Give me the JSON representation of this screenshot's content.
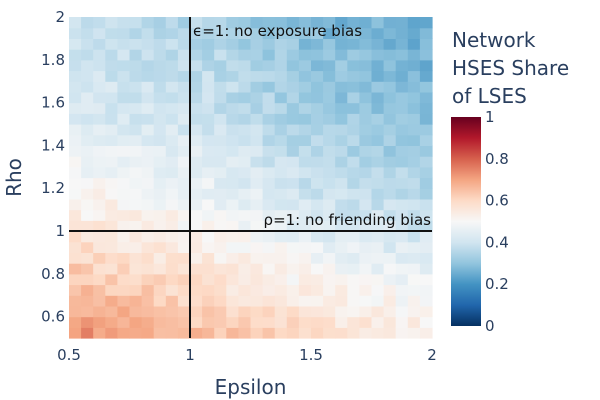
{
  "chart_data": {
    "type": "heatmap",
    "xlabel": "Epsilon",
    "ylabel": "Rho",
    "xlim": [
      0.5,
      2.0
    ],
    "ylim": [
      0.5,
      2.0
    ],
    "x_ticks": [
      "0.5",
      "1",
      "1.5",
      "2"
    ],
    "x_tick_values": [
      0.5,
      1.0,
      1.5,
      2.0
    ],
    "y_ticks": [
      "0.6",
      "0.8",
      "1",
      "1.2",
      "1.4",
      "1.6",
      "1.8",
      "2"
    ],
    "y_tick_values": [
      0.6,
      0.8,
      1.0,
      1.2,
      1.4,
      1.6,
      1.8,
      2.0
    ],
    "colorbar": {
      "title_lines": [
        "Network",
        "HSES Share",
        "of LSES"
      ],
      "range": [
        0,
        1
      ],
      "ticks": [
        "0",
        "0.2",
        "0.4",
        "0.6",
        "0.8",
        "1"
      ],
      "tick_values": [
        0,
        0.2,
        0.4,
        0.6,
        0.8,
        1.0
      ],
      "colorscale": [
        "#053061",
        "#2166ac",
        "#4393c3",
        "#92c5de",
        "#d1e5f0",
        "#f7f7f7",
        "#fddbc7",
        "#f4a582",
        "#d6604d",
        "#b2182b",
        "#67001f"
      ]
    },
    "grid": {
      "nx": 30,
      "ny": 30
    },
    "surface_anchors": {
      "eps": [
        0.5,
        1.0,
        1.5,
        2.0
      ],
      "rho": [
        0.5,
        1.0,
        1.5,
        2.0
      ],
      "values": [
        [
          0.75,
          0.56,
          0.43,
          0.37
        ],
        [
          0.66,
          0.52,
          0.41,
          0.35
        ],
        [
          0.6,
          0.44,
          0.33,
          0.28
        ],
        [
          0.54,
          0.4,
          0.29,
          0.24
        ]
      ]
    },
    "reference_lines": [
      {
        "axis": "x",
        "value": 1.0,
        "label": "ϵ=1: no exposure bias"
      },
      {
        "axis": "y",
        "value": 1.0,
        "label": "ρ=1: no friending bias"
      }
    ]
  }
}
